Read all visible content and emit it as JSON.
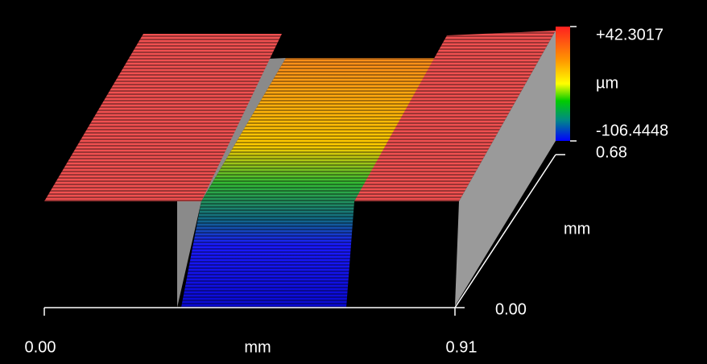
{
  "chart_data": {
    "type": "surface3d",
    "x_label": "mm",
    "y_label": "mm",
    "z_label": "µm",
    "xlim": [
      0,
      0.91
    ],
    "xticks": [
      {
        "value": 0,
        "label": "0.00"
      },
      0.91
    ],
    "ylim": [
      0,
      0.68
    ],
    "yticks": [
      {
        "value": 0,
        "label": "0.00"
      },
      0.68
    ],
    "zlim": [
      -106.4448,
      42.3017
    ],
    "zticks": [
      -106.4448,
      {
        "value": 42.3017,
        "label": "+42.3017"
      }
    ]
  }
}
